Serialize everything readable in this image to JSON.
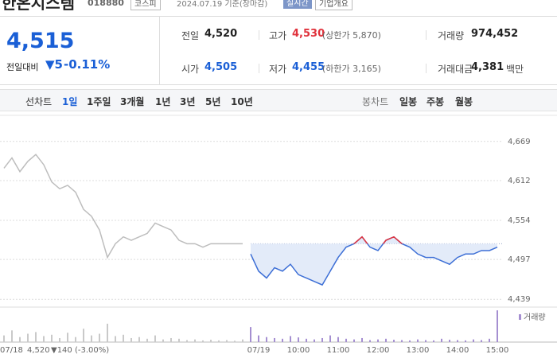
{
  "header": {
    "name": "한온시스템",
    "code": "018880",
    "market": "코스피",
    "date": "2024.07.19 기준(장마감)",
    "realtime": "실시간",
    "company_info": "기업개요"
  },
  "quote": {
    "price": "4,515",
    "change_label": "전일대비",
    "change": "▼5",
    "change_rate": "-0.11%",
    "rows": [
      [
        {
          "label": "전일",
          "value": "4,520"
        },
        {
          "label": "고가",
          "value": "4,530",
          "note": "(상한가 5,870)"
        },
        {
          "label": "거래량",
          "value": "974,452"
        }
      ],
      [
        {
          "label": "시가",
          "value": "4,505"
        },
        {
          "label": "저가",
          "value": "4,455",
          "note": "(하한가 3,165)"
        },
        {
          "label": "거래대금",
          "value": "4,381",
          "unit": "백만"
        }
      ]
    ]
  },
  "tabs": {
    "line_label": "선차트",
    "line_periods": [
      "1일",
      "1주일",
      "3개월",
      "1년",
      "3년",
      "5년",
      "10년"
    ],
    "candle_label": "봉차트",
    "candle_periods": [
      "일봉",
      "주봉",
      "월봉"
    ]
  },
  "chart_data": {
    "type": "line",
    "categories": [
      null,
      "07/18",
      null,
      null,
      null,
      null,
      null,
      null,
      null,
      null,
      null,
      null,
      null,
      null,
      null,
      null,
      null,
      null,
      null,
      null,
      null,
      null,
      null,
      null,
      null,
      null,
      null,
      null,
      null,
      null,
      null,
      null,
      "07/19",
      null,
      null,
      null,
      null,
      "10:00",
      null,
      null,
      null,
      null,
      "11:00",
      null,
      null,
      null,
      null,
      "12:00",
      null,
      null,
      null,
      null,
      "13:00",
      null,
      null,
      null,
      null,
      "14:00",
      null,
      null,
      null,
      null,
      "15:00"
    ],
    "series": [
      {
        "color": "#bdbdbd",
        "values": [
          4630,
          4645,
          4625,
          4640,
          4650,
          4635,
          4610,
          4600,
          4605,
          4595,
          4570,
          4560,
          4540,
          4500,
          4520,
          4530,
          4525,
          4530,
          4535,
          4550,
          4545,
          4540,
          4525,
          4520,
          4520,
          4515,
          4520,
          4520,
          4520,
          4520,
          4520,
          null,
          null,
          null,
          null,
          null,
          null,
          null,
          null,
          null,
          null,
          null,
          null,
          null,
          null,
          null,
          null,
          null,
          null,
          null,
          null,
          null,
          null,
          null,
          null,
          null,
          null,
          null,
          null,
          null,
          null,
          null,
          null
        ]
      },
      {
        "color": "#3d6fd6",
        "values": [
          null,
          null,
          null,
          null,
          null,
          null,
          null,
          null,
          null,
          null,
          null,
          null,
          null,
          null,
          null,
          null,
          null,
          null,
          null,
          null,
          null,
          null,
          null,
          null,
          null,
          null,
          null,
          null,
          null,
          null,
          null,
          4505,
          4480,
          4470,
          4485,
          4480,
          4490,
          4475,
          4470,
          4465,
          4460,
          4480,
          4500,
          4515,
          4520,
          4530,
          4515,
          4510,
          4525,
          4530,
          4520,
          4515,
          4505,
          4500,
          4500,
          4495,
          4490,
          4500,
          4505,
          4505,
          4510,
          4510,
          4515
        ]
      }
    ],
    "baseline": 4520,
    "above_color": "#e0323c",
    "fill_color": "#e3ebf9",
    "ylim": [
      4430,
      4700
    ],
    "yticks": [
      {
        "value": 4439,
        "label": "4,439"
      },
      {
        "value": 4497,
        "label": "4,497"
      },
      {
        "value": 4554,
        "label": "4,554"
      },
      {
        "value": 4612,
        "label": "4,612"
      },
      {
        "value": 4669,
        "label": "4,669"
      }
    ],
    "grid": true,
    "volume": {
      "label": "거래량",
      "colors": [
        "#c9c9c9",
        "#a58fd1"
      ],
      "ylim": [
        0,
        100
      ],
      "values": [
        20,
        35,
        15,
        25,
        30,
        18,
        22,
        12,
        28,
        15,
        40,
        20,
        25,
        55,
        18,
        22,
        12,
        15,
        10,
        20,
        8,
        12,
        10,
        6,
        8,
        5,
        7,
        5,
        6,
        4,
        8,
        45,
        20,
        15,
        12,
        10,
        18,
        14,
        10,
        8,
        12,
        20,
        15,
        10,
        8,
        12,
        6,
        8,
        10,
        7,
        6,
        5,
        8,
        6,
        5,
        10,
        7,
        6,
        5,
        8,
        6,
        10,
        95
      ]
    },
    "footer": {
      "date": "07/18",
      "price": "4,520",
      "change": "▼140 (-3.00%)"
    }
  }
}
